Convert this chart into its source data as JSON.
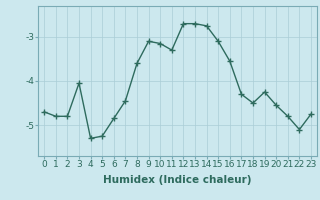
{
  "xlabel": "Humidex (Indice chaleur)",
  "x_values": [
    0,
    1,
    2,
    3,
    4,
    5,
    6,
    7,
    8,
    9,
    10,
    11,
    12,
    13,
    14,
    15,
    16,
    17,
    18,
    19,
    20,
    21,
    22,
    23
  ],
  "y_values": [
    -4.7,
    -4.8,
    -4.8,
    -4.05,
    -5.3,
    -5.25,
    -4.85,
    -4.45,
    -3.6,
    -3.1,
    -3.15,
    -3.3,
    -2.7,
    -2.7,
    -2.75,
    -3.1,
    -3.55,
    -4.3,
    -4.5,
    -4.25,
    -4.55,
    -4.8,
    -5.1,
    -4.75
  ],
  "line_color": "#2e6b5e",
  "marker": "+",
  "marker_size": 4,
  "bg_color": "#cce8ee",
  "grid_color": "#aacdd6",
  "yticks": [
    -5,
    -4,
    -3
  ],
  "ylim": [
    -5.7,
    -2.3
  ],
  "xlim": [
    -0.5,
    23.5
  ],
  "tick_label_fontsize": 6.5,
  "xlabel_fontsize": 7.5,
  "line_width": 1.0,
  "marker_edge_width": 1.0
}
